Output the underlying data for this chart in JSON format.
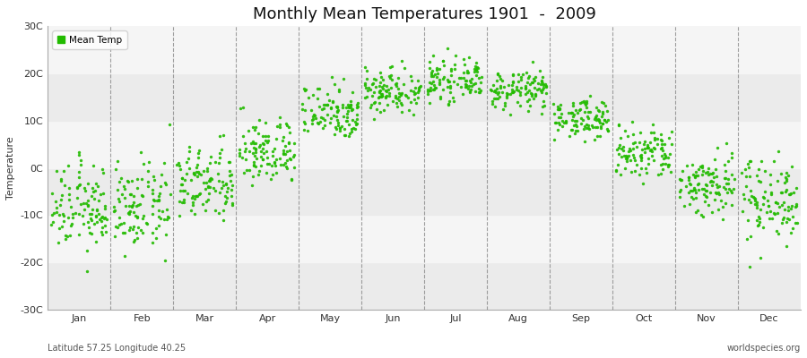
{
  "title": "Monthly Mean Temperatures 1901  -  2009",
  "ylabel": "Temperature",
  "ylim": [
    -30,
    30
  ],
  "yticks": [
    -30,
    -20,
    -10,
    0,
    10,
    20,
    30
  ],
  "ytick_labels": [
    "-30C",
    "-20C",
    "-10C",
    "0C",
    "10C",
    "20C",
    "30C"
  ],
  "months": [
    "Jan",
    "Feb",
    "Mar",
    "Apr",
    "May",
    "Jun",
    "Jul",
    "Aug",
    "Sep",
    "Oct",
    "Nov",
    "Dec"
  ],
  "dot_color": "#22BB00",
  "legend_label": "Mean Temp",
  "bottom_left": "Latitude 57.25 Longitude 40.25",
  "bottom_right": "worldspecies.org",
  "fig_facecolor": "#ffffff",
  "plot_bg_color": "#f5f5f5",
  "band_colors": [
    "#ebebeb",
    "#f5f5f5"
  ],
  "n_years": 109,
  "monthly_means": [
    -8.5,
    -8.5,
    -3.5,
    3.5,
    12.0,
    16.5,
    18.5,
    16.5,
    10.5,
    3.0,
    -3.5,
    -6.5
  ],
  "monthly_stds": [
    4.5,
    4.5,
    4.0,
    3.5,
    3.0,
    2.5,
    2.0,
    2.0,
    2.0,
    3.0,
    3.5,
    4.5
  ]
}
